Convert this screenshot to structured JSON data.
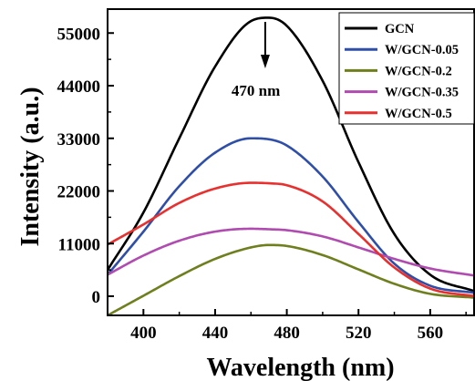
{
  "chart_data": {
    "type": "line",
    "xlabel": "Wavelength (nm)",
    "ylabel": "Intensity (a.u.)",
    "xlim": [
      380,
      585
    ],
    "ylim": [
      -4000,
      60000
    ],
    "xticks": [
      400,
      440,
      480,
      520,
      560
    ],
    "yticks": [
      0,
      11000,
      22000,
      33000,
      44000,
      55000
    ],
    "x": [
      380,
      400,
      420,
      440,
      460,
      470,
      480,
      500,
      520,
      540,
      560,
      585
    ],
    "series": [
      {
        "name": "GCN",
        "color": "#000000",
        "values": [
          5500,
          17500,
          33000,
          48000,
          57500,
          58200,
          56500,
          45000,
          28000,
          13000,
          4500,
          1000
        ]
      },
      {
        "name": "W/GCN-0.05",
        "color": "#2e4ea8",
        "values": [
          4500,
          13500,
          23000,
          30000,
          33000,
          32800,
          31500,
          25000,
          15500,
          6800,
          2200,
          700
        ]
      },
      {
        "name": "W/GCN-0.2",
        "color": "#6f7f1e",
        "values": [
          -4000,
          100,
          4200,
          7800,
          10200,
          10700,
          10500,
          8600,
          5600,
          2600,
          500,
          -300
        ]
      },
      {
        "name": "W/GCN-0.35",
        "color": "#b04cb0",
        "values": [
          4500,
          8500,
          11600,
          13500,
          14100,
          14000,
          13800,
          12500,
          10200,
          7800,
          5800,
          4300
        ]
      },
      {
        "name": "W/GCN-0.5",
        "color": "#e8302f",
        "values": [
          10800,
          15000,
          19500,
          22500,
          23700,
          23600,
          23200,
          19800,
          13000,
          6000,
          1600,
          0
        ]
      }
    ],
    "annotation": {
      "text": "470 nm",
      "x": 470
    },
    "legend_position": "top-right",
    "grid": false
  }
}
